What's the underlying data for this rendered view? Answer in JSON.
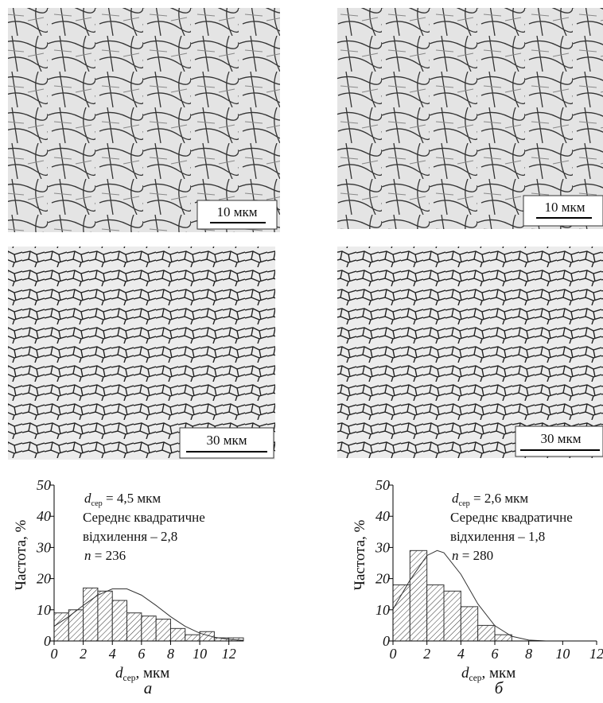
{
  "images": [
    {
      "scale_label": "10 мкм"
    },
    {
      "scale_label": "10 мкм"
    },
    {
      "scale_label": "30 мкм"
    },
    {
      "scale_label": "30 мкм"
    }
  ],
  "chart_data": [
    {
      "type": "histogram",
      "caption": "а",
      "ylabel": "Частота, %",
      "xlabel": {
        "symbol": "d",
        "subscript": "сер",
        "unit": ", мкм"
      },
      "annotation": {
        "mean": {
          "symbol": "d",
          "subscript": "сер",
          "text": " = 4,5 мкм"
        },
        "lines": [
          "Середнє квадратичне",
          "відхилення – 2,8"
        ],
        "n": {
          "symbol": "n",
          "text": " = 236"
        }
      },
      "bins": [
        0,
        1,
        2,
        3,
        4,
        5,
        6,
        7,
        8,
        9,
        10,
        11,
        12,
        13
      ],
      "values": [
        9,
        10,
        17,
        16,
        13,
        9,
        8,
        7,
        4,
        2,
        3,
        1,
        1
      ],
      "fit": {
        "x": [
          0,
          1,
          2,
          3,
          4,
          5,
          6,
          7,
          8,
          9,
          10,
          11,
          12,
          13
        ],
        "values": [
          4.7,
          7.8,
          11.4,
          14.7,
          16.7,
          16.7,
          14.7,
          11.4,
          7.8,
          4.7,
          2.5,
          1.2,
          0.5,
          0.2
        ]
      },
      "xlim": [
        0,
        13
      ],
      "xticks": [
        0,
        2,
        4,
        6,
        8,
        10,
        12
      ],
      "ylim": [
        0,
        50
      ],
      "yticks": [
        0,
        10,
        20,
        30,
        40,
        50
      ]
    },
    {
      "type": "histogram",
      "caption": "б",
      "ylabel": "Частота, %",
      "xlabel": {
        "symbol": "d",
        "subscript": "сер",
        "unit": ", мкм"
      },
      "annotation": {
        "mean": {
          "symbol": "d",
          "subscript": "сер",
          "text": " = 2,6 мкм"
        },
        "lines": [
          "Середнє квадратичне",
          "відхилення – 1,8"
        ],
        "n": {
          "symbol": "n",
          "text": " = 280"
        }
      },
      "bins": [
        0,
        1,
        2,
        3,
        4,
        5,
        6,
        7
      ],
      "values": [
        18,
        29,
        18,
        16,
        11,
        5,
        2
      ],
      "fit": {
        "x": [
          0,
          1,
          2,
          2.6,
          3,
          4,
          5,
          6,
          7,
          8,
          9
        ],
        "values": [
          10.2,
          19.5,
          27.4,
          29,
          28.3,
          21.4,
          11.9,
          4.9,
          1.5,
          0.3,
          0
        ]
      },
      "xlim": [
        0,
        12
      ],
      "xticks": [
        0,
        2,
        4,
        6,
        8,
        10,
        12
      ],
      "ylim": [
        0,
        50
      ],
      "yticks": [
        0,
        10,
        20,
        30,
        40,
        50
      ]
    }
  ]
}
